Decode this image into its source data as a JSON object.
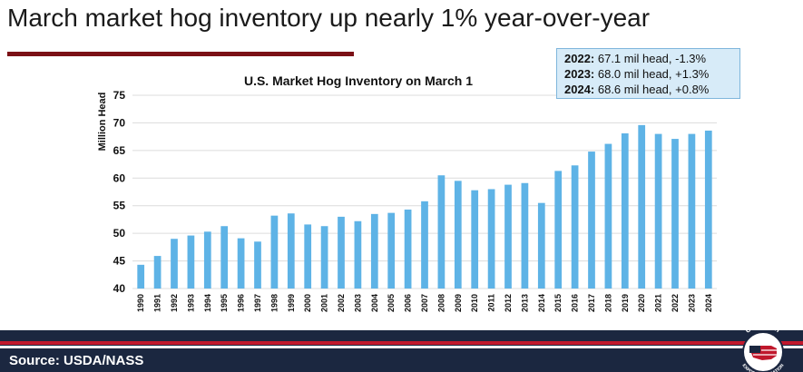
{
  "slide": {
    "title": "March market hog inventory up nearly 1% year-over-year",
    "source": "Source: USDA/NASS"
  },
  "callout": {
    "lines": [
      {
        "year": "2022:",
        "text": " 67.1 mil head, -1.3%"
      },
      {
        "year": "2023:",
        "text": " 68.0 mil head, +1.3%"
      },
      {
        "year": "2024:",
        "text": " 68.6 mil head, +0.8%"
      }
    ]
  },
  "logo": {
    "text_top": "U.S.MEAT",
    "text_bottom": "EXPORT FEDERATION"
  },
  "colors": {
    "bar": "#5eb3e6",
    "title_rule": "#7b1016",
    "footer": "#1b2740",
    "stripe": "#c0182c"
  },
  "chart_data": {
    "type": "bar",
    "title": "U.S. Market Hog Inventory on March 1",
    "xlabel": "",
    "ylabel": "Million Head",
    "ylim": [
      40,
      75
    ],
    "yticks": [
      40,
      45,
      50,
      55,
      60,
      65,
      70,
      75
    ],
    "grid": true,
    "categories": [
      "1990",
      "1991",
      "1992",
      "1993",
      "1994",
      "1995",
      "1996",
      "1997",
      "1998",
      "1999",
      "2000",
      "2001",
      "2002",
      "2003",
      "2004",
      "2005",
      "2006",
      "2007",
      "2008",
      "2009",
      "2010",
      "2011",
      "2012",
      "2013",
      "2014",
      "2015",
      "2016",
      "2017",
      "2018",
      "2019",
      "2020",
      "2021",
      "2022",
      "2023",
      "2024"
    ],
    "values": [
      44.3,
      45.9,
      49.0,
      49.6,
      50.3,
      51.3,
      49.1,
      48.5,
      53.2,
      53.6,
      51.6,
      51.3,
      53.0,
      52.2,
      53.5,
      53.7,
      54.3,
      55.8,
      60.5,
      59.5,
      57.8,
      58.0,
      58.8,
      59.1,
      55.5,
      61.3,
      62.3,
      64.8,
      66.2,
      68.1,
      69.6,
      68.0,
      67.1,
      68.0,
      68.6
    ]
  }
}
